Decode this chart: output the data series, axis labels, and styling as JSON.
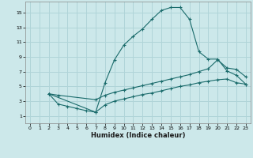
{
  "xlabel": "Humidex (Indice chaleur)",
  "bg_color": "#cce8ea",
  "grid_color": "#b0d4d8",
  "line_color": "#1a6b6b",
  "xlim": [
    -0.5,
    23.5
  ],
  "ylim": [
    0,
    16.5
  ],
  "xticks": [
    0,
    1,
    2,
    3,
    4,
    5,
    6,
    7,
    8,
    9,
    10,
    11,
    12,
    13,
    14,
    15,
    16,
    17,
    18,
    19,
    20,
    21,
    22,
    23
  ],
  "yticks": [
    1,
    3,
    5,
    7,
    9,
    11,
    13,
    15
  ],
  "series1_x": [
    2,
    3,
    4,
    5,
    6,
    7,
    8,
    9,
    10,
    11,
    12,
    13,
    14,
    15,
    16,
    17,
    18,
    19,
    20,
    21,
    22,
    23
  ],
  "series1_y": [
    4.0,
    2.6,
    2.3,
    2.0,
    1.7,
    1.5,
    5.5,
    8.6,
    10.6,
    11.8,
    12.8,
    14.1,
    15.3,
    15.7,
    15.7,
    14.1,
    9.7,
    8.7,
    8.7,
    7.1,
    6.5,
    5.3
  ],
  "series2_x": [
    2,
    3,
    7,
    8,
    9,
    10,
    11,
    12,
    13,
    14,
    15,
    16,
    17,
    18,
    19,
    20,
    21,
    22,
    23
  ],
  "series2_y": [
    4.0,
    3.8,
    3.2,
    3.8,
    4.2,
    4.5,
    4.8,
    5.1,
    5.4,
    5.7,
    6.0,
    6.3,
    6.6,
    7.0,
    7.4,
    8.6,
    7.5,
    7.3,
    6.3
  ],
  "series3_x": [
    2,
    7,
    8,
    9,
    10,
    11,
    12,
    13,
    14,
    15,
    16,
    17,
    18,
    19,
    20,
    21,
    22,
    23
  ],
  "series3_y": [
    4.0,
    1.5,
    2.5,
    3.0,
    3.3,
    3.6,
    3.9,
    4.1,
    4.4,
    4.7,
    5.0,
    5.2,
    5.5,
    5.7,
    5.9,
    6.0,
    5.5,
    5.3
  ]
}
